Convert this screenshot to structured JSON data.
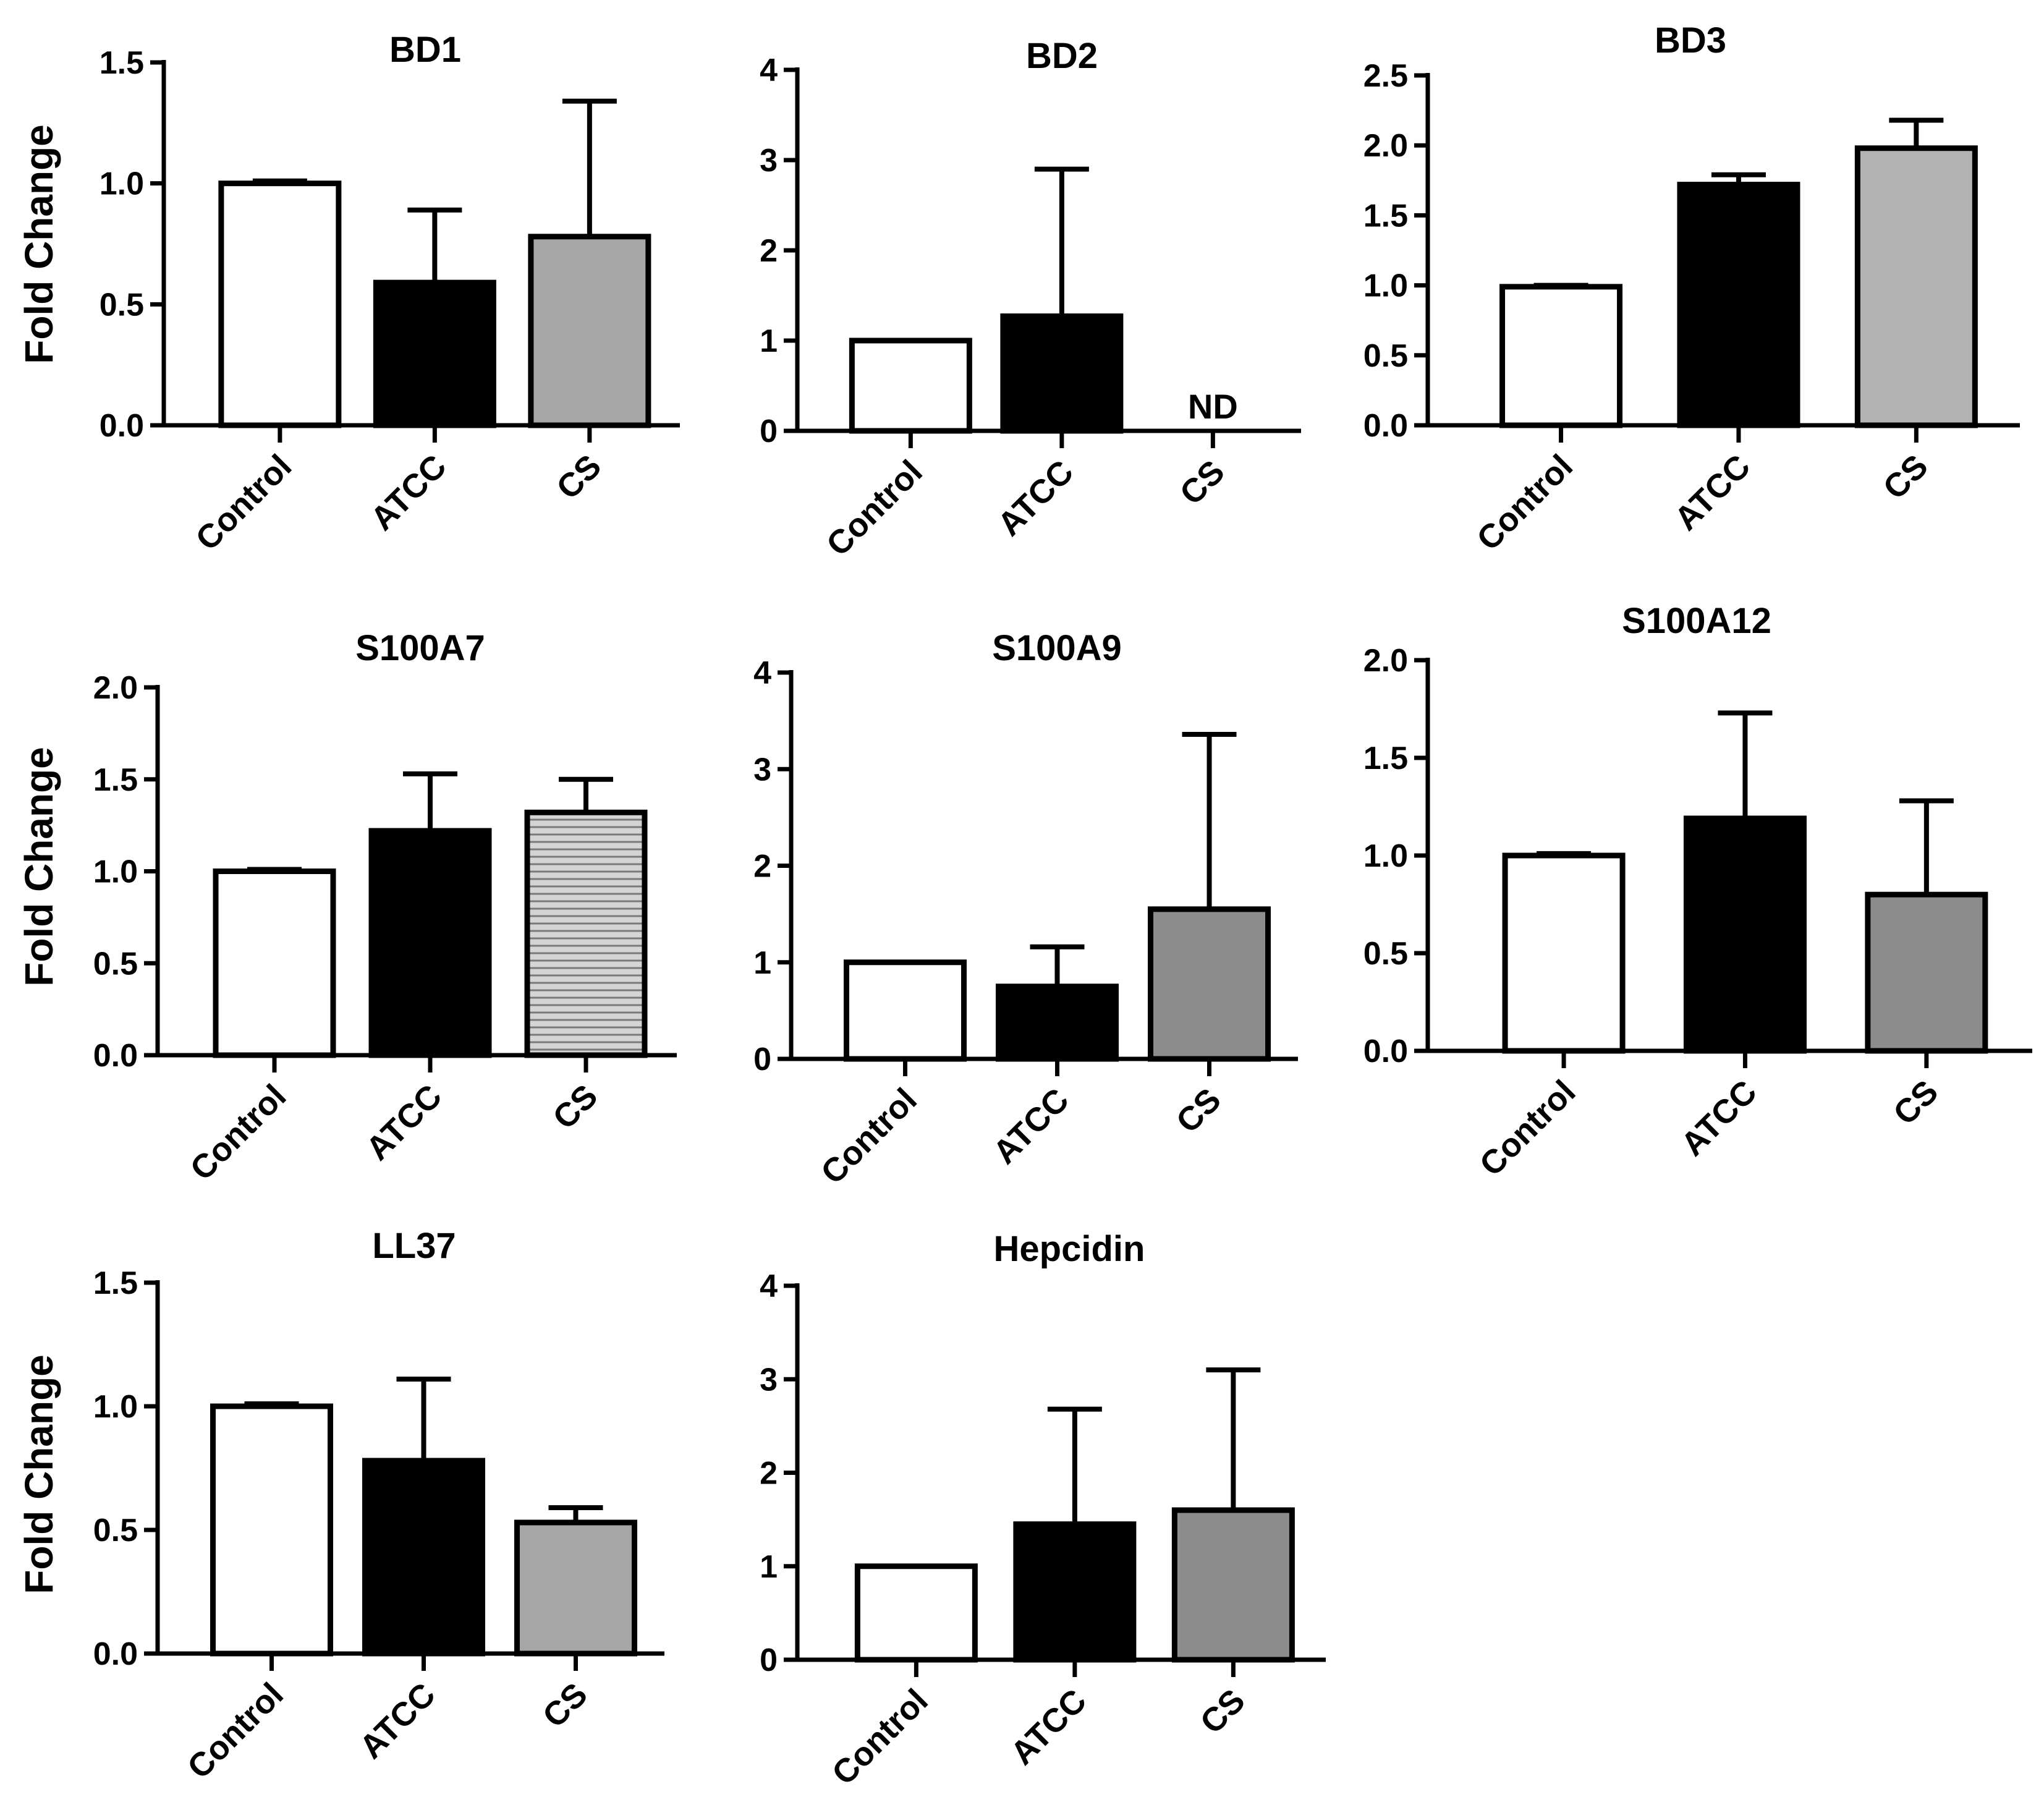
{
  "chart_data": [
    {
      "type": "bar",
      "title": "BD1",
      "ylabel": "Fold Change",
      "categories": [
        "Control",
        "ATCC",
        "CS"
      ],
      "values": [
        1.0,
        0.59,
        0.78
      ],
      "errors": [
        0.01,
        0.3,
        0.56
      ],
      "fills": [
        "#ffffff",
        "#000000",
        "#a6a6a6"
      ],
      "patterns": [
        "",
        "",
        ""
      ],
      "bar_notes": [
        "",
        "",
        ""
      ],
      "ylim": [
        0,
        1.5
      ],
      "yticks": [
        "0.0",
        "0.5",
        "1.0",
        "1.5"
      ],
      "grid": false,
      "legend": "none"
    },
    {
      "type": "bar",
      "title": "BD2",
      "ylabel": "",
      "categories": [
        "Control",
        "ATCC",
        "CS"
      ],
      "values": [
        1.0,
        1.27,
        0
      ],
      "errors": [
        0,
        1.63,
        0
      ],
      "fills": [
        "#ffffff",
        "#000000",
        "#a6a6a6"
      ],
      "patterns": [
        "",
        "",
        ""
      ],
      "bar_notes": [
        "",
        "",
        "ND"
      ],
      "ylim": [
        0,
        4
      ],
      "yticks": [
        "0",
        "1",
        "2",
        "3",
        "4"
      ],
      "grid": false,
      "legend": "none"
    },
    {
      "type": "bar",
      "title": "BD3",
      "ylabel": "",
      "categories": [
        "Control",
        "ATCC",
        "CS"
      ],
      "values": [
        0.99,
        1.72,
        1.98
      ],
      "errors": [
        0.01,
        0.07,
        0.2
      ],
      "fills": [
        "#ffffff",
        "#000000",
        "#b3b3b3"
      ],
      "patterns": [
        "",
        "",
        ""
      ],
      "bar_notes": [
        "",
        "",
        ""
      ],
      "ylim": [
        0,
        2.5
      ],
      "yticks": [
        "0.0",
        "0.5",
        "1.0",
        "1.5",
        "2.0",
        "2.5"
      ],
      "grid": false,
      "legend": "none"
    },
    {
      "type": "bar",
      "title": "S100A7",
      "ylabel": "Fold Change",
      "categories": [
        "Control",
        "ATCC",
        "CS"
      ],
      "values": [
        1.0,
        1.22,
        1.32
      ],
      "errors": [
        0.01,
        0.31,
        0.18
      ],
      "fills": [
        "#ffffff",
        "#000000",
        "#d0d0d0"
      ],
      "patterns": [
        "",
        "",
        "horizontal-lines"
      ],
      "bar_notes": [
        "",
        "",
        ""
      ],
      "ylim": [
        0,
        2.0
      ],
      "yticks": [
        "0.0",
        "0.5",
        "1.0",
        "1.5",
        "2.0"
      ],
      "grid": false,
      "legend": "none"
    },
    {
      "type": "bar",
      "title": "S100A9",
      "ylabel": "",
      "categories": [
        "Control",
        "ATCC",
        "CS"
      ],
      "values": [
        1.0,
        0.75,
        1.55
      ],
      "errors": [
        0,
        0.41,
        1.81
      ],
      "fills": [
        "#ffffff",
        "#000000",
        "#8c8c8c"
      ],
      "patterns": [
        "",
        "",
        ""
      ],
      "bar_notes": [
        "",
        "",
        ""
      ],
      "ylim": [
        0,
        4
      ],
      "yticks": [
        "0",
        "1",
        "2",
        "3",
        "4"
      ],
      "grid": false,
      "legend": "none"
    },
    {
      "type": "bar",
      "title": "S100A12",
      "ylabel": "",
      "categories": [
        "Control",
        "ATCC",
        "CS"
      ],
      "values": [
        1.0,
        1.19,
        0.8
      ],
      "errors": [
        0.01,
        0.54,
        0.48
      ],
      "fills": [
        "#ffffff",
        "#000000",
        "#8c8c8c"
      ],
      "patterns": [
        "",
        "",
        ""
      ],
      "bar_notes": [
        "",
        "",
        ""
      ],
      "ylim": [
        0,
        2.0
      ],
      "yticks": [
        "0.0",
        "0.5",
        "1.0",
        "1.5",
        "2.0"
      ],
      "grid": false,
      "legend": "none"
    },
    {
      "type": "bar",
      "title": "LL37",
      "ylabel": "Fold Change",
      "categories": [
        "Control",
        "ATCC",
        "CS"
      ],
      "values": [
        1.0,
        0.78,
        0.53
      ],
      "errors": [
        0.01,
        0.33,
        0.06
      ],
      "fills": [
        "#ffffff",
        "#000000",
        "#a6a6a6"
      ],
      "patterns": [
        "",
        "",
        ""
      ],
      "bar_notes": [
        "",
        "",
        ""
      ],
      "ylim": [
        0,
        1.5
      ],
      "yticks": [
        "0.0",
        "0.5",
        "1.0",
        "1.5"
      ],
      "grid": false,
      "legend": "none"
    },
    {
      "type": "bar",
      "title": "Hepcidin",
      "ylabel": "",
      "categories": [
        "Control",
        "ATCC",
        "CS"
      ],
      "values": [
        1.0,
        1.45,
        1.6
      ],
      "errors": [
        0,
        1.23,
        1.5
      ],
      "fills": [
        "#ffffff",
        "#000000",
        "#8c8c8c"
      ],
      "patterns": [
        "",
        "",
        ""
      ],
      "bar_notes": [
        "",
        "",
        ""
      ],
      "ylim": [
        0,
        4
      ],
      "yticks": [
        "0",
        "1",
        "2",
        "3",
        "4"
      ],
      "grid": false,
      "legend": "none"
    }
  ]
}
